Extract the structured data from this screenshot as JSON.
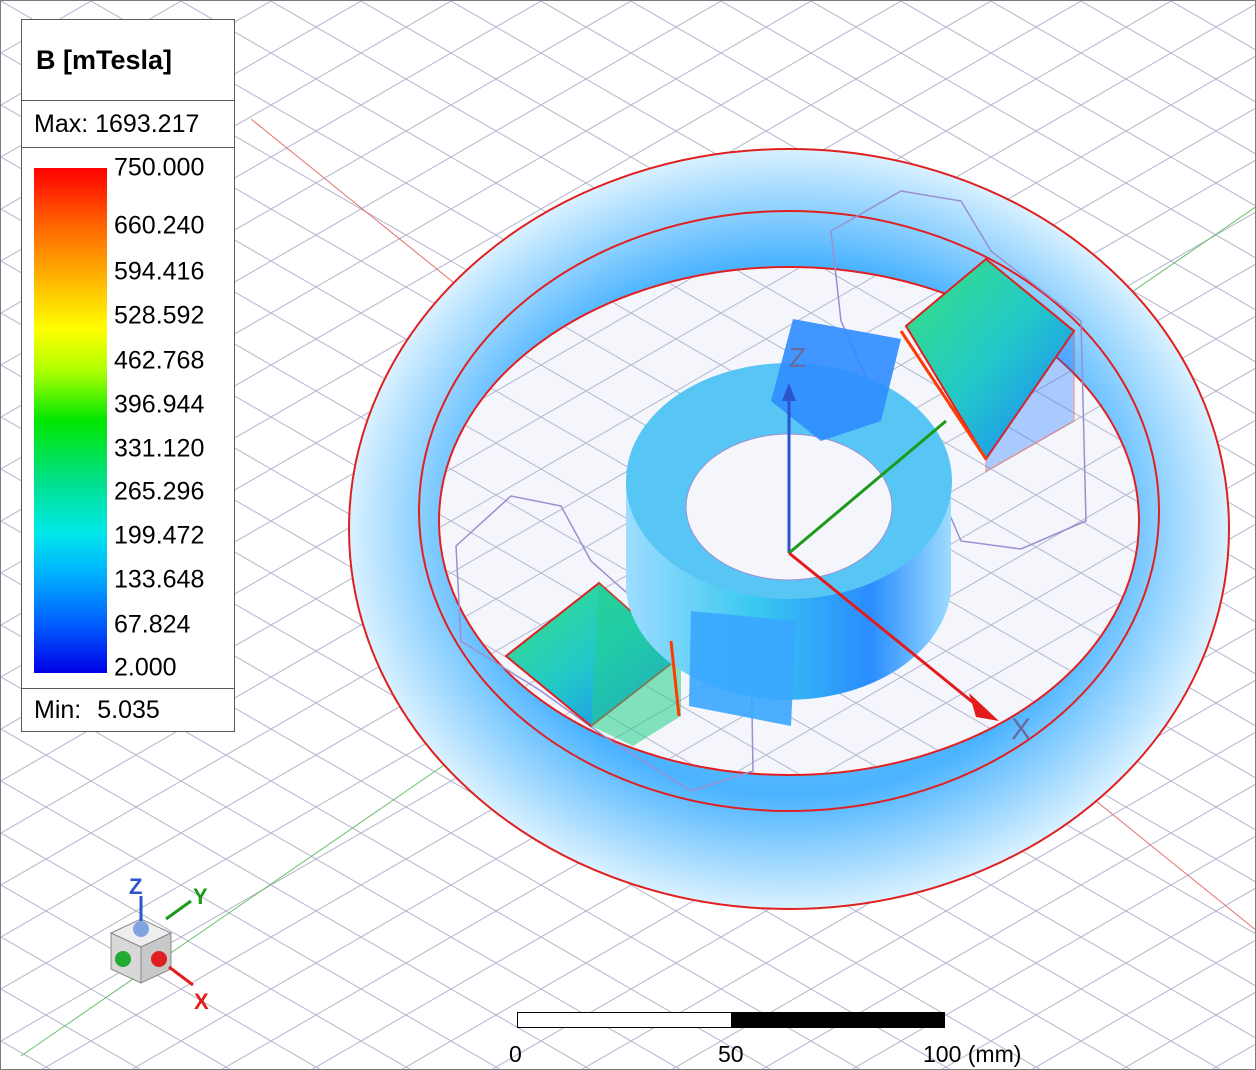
{
  "legend": {
    "title": "B [mTesla]",
    "max_label": "Max: 1693.217",
    "min_prefix": "Min:",
    "min_value": "5.035",
    "ticks": [
      "750.000",
      "660.240",
      "594.416",
      "528.592",
      "462.768",
      "396.944",
      "331.120",
      "265.296",
      "199.472",
      "133.648",
      "67.824",
      "2.000"
    ]
  },
  "axes": {
    "x": "X",
    "y": "Y",
    "z": "Z"
  },
  "scale_bar": {
    "labels": [
      "0",
      "50",
      "100 (mm)"
    ]
  },
  "colors": {
    "axis_x": "#e31b1b",
    "axis_y": "#1b9a1b",
    "axis_z": "#2b55c8",
    "outline": "#e02020",
    "field_low": "#1e8cff",
    "field_high": "#ff0000"
  }
}
